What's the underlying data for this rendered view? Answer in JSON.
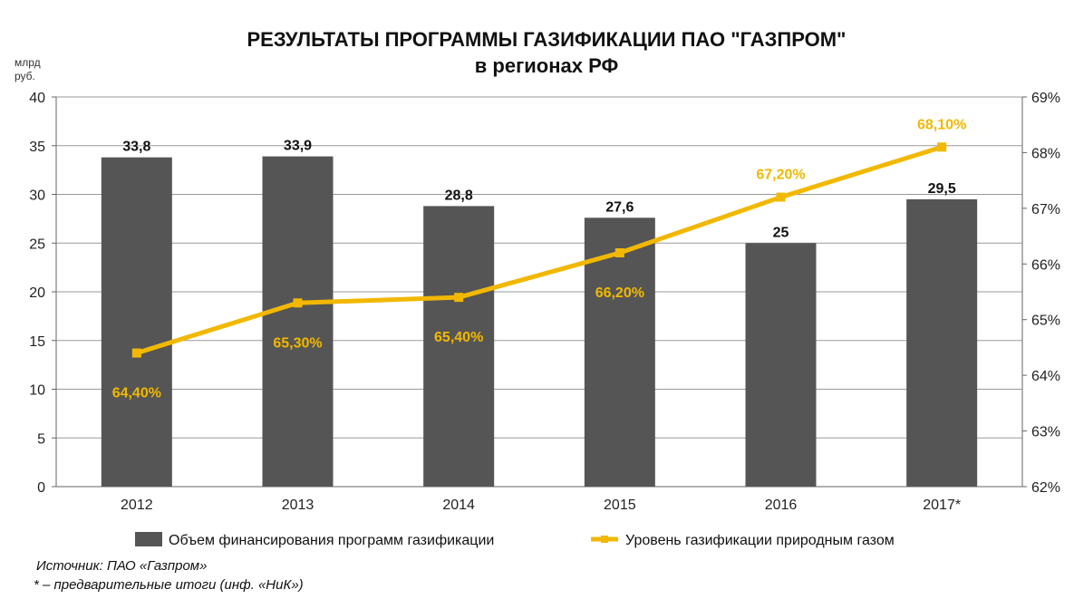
{
  "chart_data": {
    "type": "bar",
    "title": "РЕЗУЛЬТАТЫ ПРОГРАММЫ ГАЗИФИКАЦИИ ПАО \"ГАЗПРОМ\"",
    "subtitle": "в регионах РФ",
    "y_unit_line1": "млрд",
    "y_unit_line2": "руб.",
    "categories": [
      "2012",
      "2013",
      "2014",
      "2015",
      "2016",
      "2017*"
    ],
    "series": [
      {
        "name": "Объем финансирования программ газификации",
        "type": "bar",
        "axis": "left",
        "color": "#555555",
        "values": [
          33.8,
          33.9,
          28.8,
          27.6,
          25,
          29.5
        ],
        "labels": [
          "33,8",
          "33,9",
          "28,8",
          "27,6",
          "25",
          "29,5"
        ]
      },
      {
        "name": "Уровень газификации природным газом",
        "type": "line",
        "axis": "right",
        "color": "#f2b800",
        "values": [
          64.4,
          65.3,
          65.4,
          66.2,
          67.2,
          68.1
        ],
        "labels": [
          "64,40%",
          "65,30%",
          "65,40%",
          "66,20%",
          "67,20%",
          "68,10%"
        ]
      }
    ],
    "y_left": {
      "min": 0,
      "max": 40,
      "ticks": [
        "0",
        "5",
        "10",
        "15",
        "20",
        "25",
        "30",
        "35",
        "40"
      ]
    },
    "y_right": {
      "min": 62,
      "max": 69,
      "ticks": [
        "62%",
        "63%",
        "64%",
        "65%",
        "66%",
        "67%",
        "68%",
        "69%"
      ]
    },
    "grid": true,
    "legend": "bottom",
    "source_note": "Источник: ПАО «Газпром»",
    "footnote": "* – предварительные итоги (инф. «НиК»)"
  }
}
